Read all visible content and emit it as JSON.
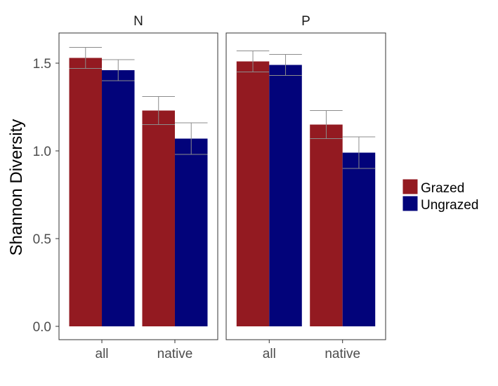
{
  "chart_data": {
    "type": "bar",
    "ylabel": "Shannon Diversity",
    "xlabel": "",
    "ylim": [
      0,
      1.65
    ],
    "yticks": [
      0.0,
      0.5,
      1.0,
      1.5
    ],
    "ytick_labels": [
      "0.0",
      "0.5",
      "1.0",
      "1.5"
    ],
    "categories": [
      "all",
      "native"
    ],
    "panels": [
      {
        "label": "N",
        "series": [
          {
            "name": "Grazed",
            "values": [
              1.53,
              1.23
            ],
            "errors": [
              0.06,
              0.08
            ]
          },
          {
            "name": "Ungrazed",
            "values": [
              1.46,
              1.07
            ],
            "errors": [
              0.06,
              0.09
            ]
          }
        ]
      },
      {
        "label": "P",
        "series": [
          {
            "name": "Grazed",
            "values": [
              1.51,
              1.15
            ],
            "errors": [
              0.06,
              0.08
            ]
          },
          {
            "name": "Ungrazed",
            "values": [
              1.49,
              0.99
            ],
            "errors": [
              0.06,
              0.09
            ]
          }
        ]
      }
    ],
    "legend": {
      "placement": "right",
      "entries": [
        "Grazed",
        "Ungrazed"
      ]
    },
    "colors": {
      "Grazed": "#931A21",
      "Ungrazed": "#02037A"
    },
    "grid": false
  }
}
